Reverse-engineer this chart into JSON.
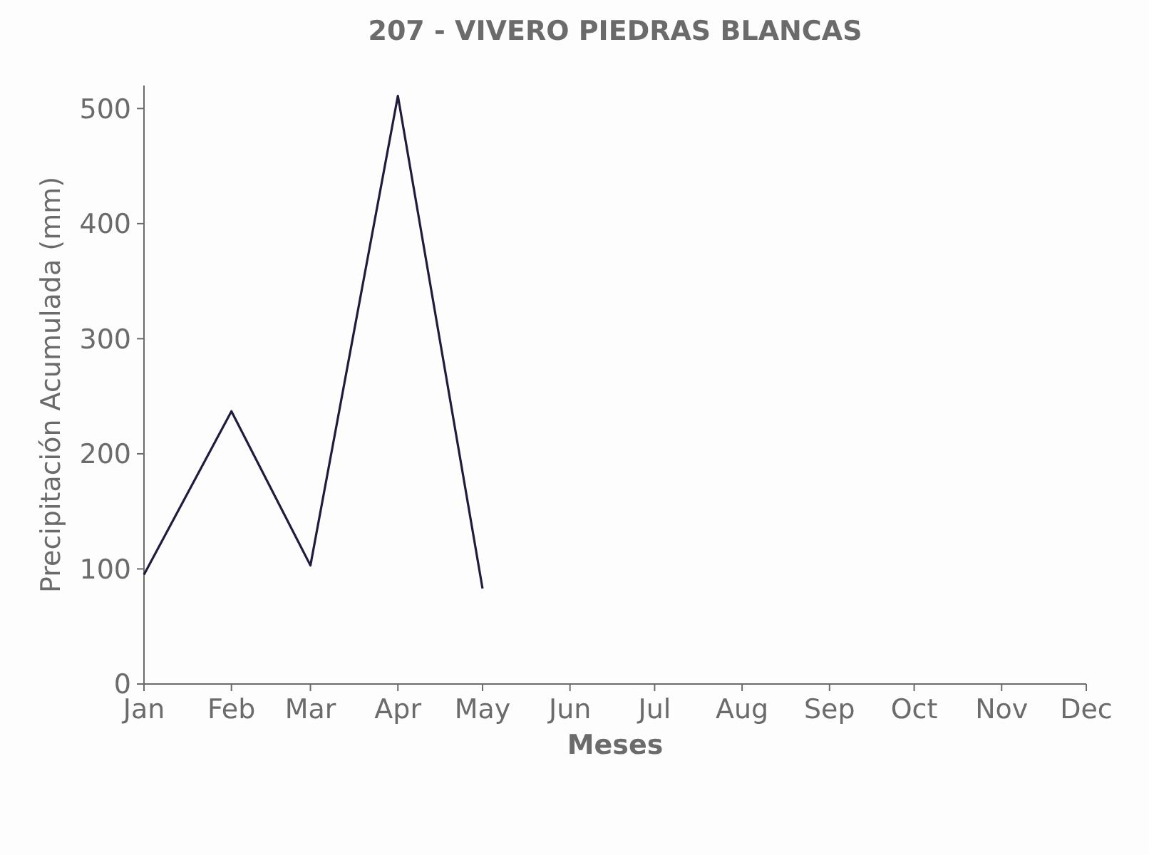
{
  "chart_data": {
    "type": "line",
    "title": "207 - VIVERO PIEDRAS BLANCAS",
    "xlabel": "Meses",
    "ylabel": "Precipitación Acumulada (mm)",
    "x": [
      "--01-01",
      "--02-01",
      "--03-01",
      "--04-01",
      "--05-01"
    ],
    "series": [
      {
        "color": "#1f1d3d",
        "values": [
          95,
          237,
          103,
          511,
          83
        ]
      }
    ],
    "xlim": [
      "--01-01",
      "--12-01"
    ],
    "xticks": [
      {
        "value": "--01-01",
        "label": "Jan"
      },
      {
        "value": "--02-01",
        "label": "Feb"
      },
      {
        "value": "--03-01",
        "label": "Mar"
      },
      {
        "value": "--04-01",
        "label": "Apr"
      },
      {
        "value": "--05-01",
        "label": "May"
      },
      {
        "value": "--06-01",
        "label": "Jun"
      },
      {
        "value": "--07-01",
        "label": "Jul"
      },
      {
        "value": "--08-01",
        "label": "Aug"
      },
      {
        "value": "--09-01",
        "label": "Sep"
      },
      {
        "value": "--10-01",
        "label": "Oct"
      },
      {
        "value": "--11-01",
        "label": "Nov"
      },
      {
        "value": "--12-01",
        "label": "Dec"
      }
    ],
    "ylim": [
      0,
      520
    ],
    "yticks": [
      0,
      100,
      200,
      300,
      400,
      500
    ],
    "grid": false,
    "marker": "none",
    "line_style": "solid"
  }
}
